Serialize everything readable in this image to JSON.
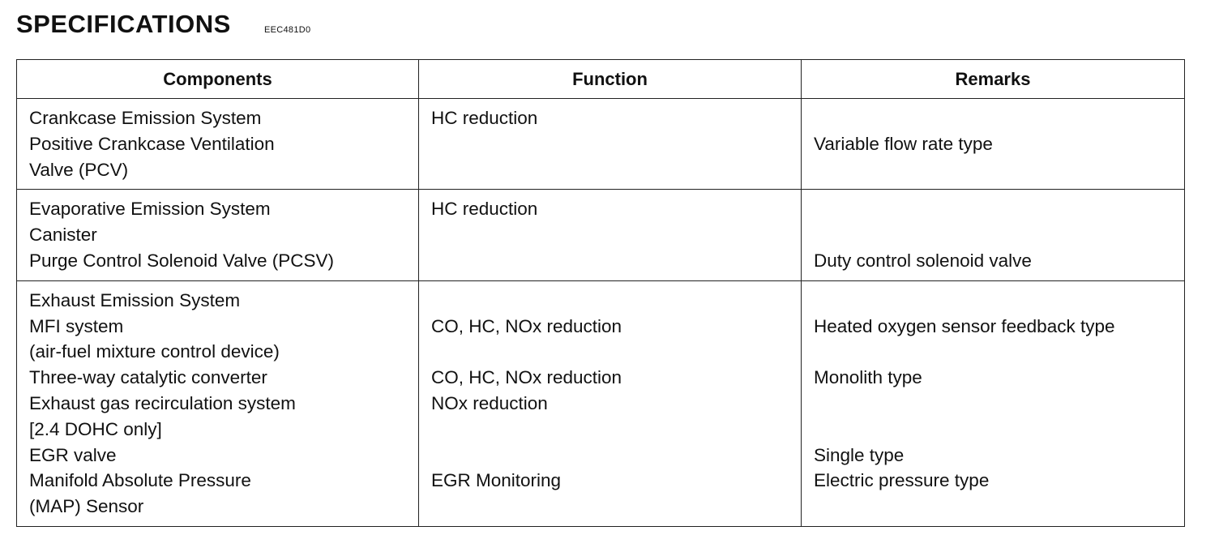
{
  "title": "SPECIFICATIONS",
  "code": "EEC481D0",
  "table": {
    "headers": [
      "Components",
      "Function",
      "Remarks"
    ],
    "rows": [
      {
        "components": [
          "Crankcase Emission System",
          "Positive Crankcase Ventilation",
          "Valve (PCV)"
        ],
        "function": [
          "HC reduction",
          "",
          ""
        ],
        "remarks": [
          "",
          "Variable flow rate type",
          ""
        ]
      },
      {
        "components": [
          "Evaporative Emission System",
          "Canister",
          "Purge Control Solenoid Valve (PCSV)"
        ],
        "function": [
          "HC reduction",
          "",
          ""
        ],
        "remarks": [
          "",
          "",
          "Duty control solenoid valve"
        ]
      },
      {
        "components": [
          "Exhaust Emission System",
          "MFI system",
          "(air-fuel mixture control device)",
          "Three-way catalytic converter",
          "Exhaust gas recirculation system",
          "[2.4 DOHC only]",
          "EGR valve",
          "Manifold Absolute Pressure",
          "(MAP) Sensor"
        ],
        "function": [
          "",
          "CO, HC, NOx reduction",
          "",
          "CO, HC, NOx reduction",
          "NOx reduction",
          "",
          "",
          "EGR Monitoring",
          ""
        ],
        "remarks": [
          "",
          "Heated oxygen sensor feedback type",
          "",
          "Monolith type",
          "",
          "",
          "Single type",
          "Electric pressure type",
          ""
        ]
      }
    ]
  }
}
